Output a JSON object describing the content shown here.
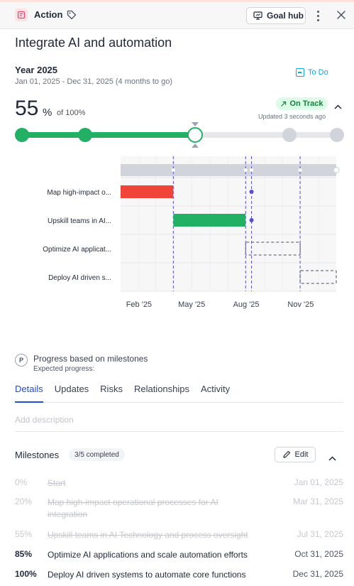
{
  "header": {
    "type_label": "Action",
    "goal_hub_label": "Goal hub"
  },
  "goal": {
    "title": "Integrate AI and automation",
    "period": "Year 2025",
    "date_range": "Jan 01, 2025 - Dec 31, 2025 (4 months to go)",
    "status_label": "To Do"
  },
  "progress": {
    "value": "55",
    "unit": "%",
    "of_label": "of 100%",
    "fraction": 0.55,
    "health_label": "On Track",
    "updated": "Updated 3 seconds ago",
    "slider_stops": [
      0,
      20,
      55,
      85,
      100
    ]
  },
  "chart_data": {
    "type": "gantt",
    "x_tick_labels": [
      "Feb '25",
      "May '25",
      "Aug '25",
      "Nov '25"
    ],
    "range": [
      "2025-01-01",
      "2025-12-31"
    ],
    "tasks": [
      {
        "label": "Map high-impact o...",
        "start": "2025-01-01",
        "end": "2025-03-31",
        "style": "red-filled",
        "milestone_dot": "2025-08-10"
      },
      {
        "label": "Upskill teams in AI...",
        "start": "2025-03-31",
        "end": "2025-07-31",
        "style": "green-filled",
        "milestone_dot": "2025-08-10"
      },
      {
        "label": "Optimize AI applicat...",
        "start": "2025-07-31",
        "end": "2025-10-31",
        "style": "dashed"
      },
      {
        "label": "Deploy AI driven s...",
        "start": "2025-10-31",
        "end": "2025-12-31",
        "style": "dashed"
      }
    ],
    "markers": [
      "2025-03-31",
      "2025-07-31",
      "2025-08-10",
      "2025-10-31"
    ],
    "colors": {
      "red": "#f04438",
      "green": "#22b064",
      "dashed": "#6b7280",
      "marker": "#5b4ccf",
      "header_bar": "#d1d5db"
    }
  },
  "basis": {
    "title": "Progress based on milestones",
    "subtitle": "Expected progress:"
  },
  "tabs": [
    "Details",
    "Updates",
    "Risks",
    "Relationships",
    "Activity"
  ],
  "active_tab": "Details",
  "description_placeholder": "Add description",
  "milestones": {
    "heading": "Milestones",
    "count": "3/5 completed",
    "edit_label": "Edit",
    "items": [
      {
        "pct": "0%",
        "name": "Start",
        "date": "Jan 01, 2025",
        "done": true
      },
      {
        "pct": "20%",
        "name": "Map high-impact operational processes for AI integration",
        "date": "Mar 31, 2025",
        "done": true
      },
      {
        "pct": "55%",
        "name": "Upskill teams in AI Technology and process oversight",
        "date": "Jul 31, 2025",
        "done": true
      },
      {
        "pct": "85%",
        "name": "Optimize AI applications and scale automation efforts",
        "date": "Oct 31, 2025",
        "done": false
      },
      {
        "pct": "100%",
        "name": "Deploy AI driven systems to automate core functions",
        "date": "Dec 31, 2025",
        "done": false
      }
    ]
  }
}
